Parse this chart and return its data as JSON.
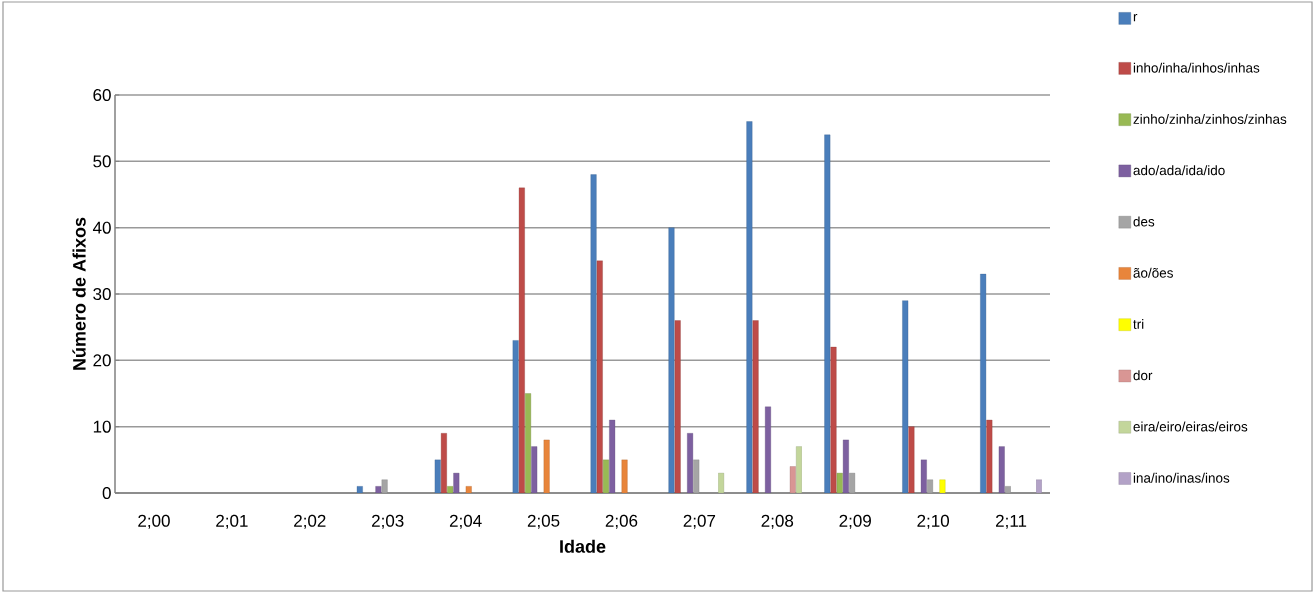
{
  "chart_data": {
    "type": "bar",
    "xlabel": "Idade",
    "ylabel": "Número de Afixos",
    "categories": [
      "2;00",
      "2;01",
      "2;02",
      "2;03",
      "2;04",
      "2;05",
      "2;06",
      "2;07",
      "2;08",
      "2;09",
      "2;10",
      "2;11"
    ],
    "ylim": [
      0,
      60
    ],
    "yticks": [
      0,
      10,
      20,
      30,
      40,
      50,
      60
    ],
    "grid": "y",
    "legend": "right",
    "series": [
      {
        "name": "r",
        "color": "#4a7ebb",
        "values": [
          null,
          null,
          null,
          1,
          5,
          23,
          48,
          40,
          56,
          54,
          29,
          33
        ]
      },
      {
        "name": "inho/inha/inhos/inhas",
        "color": "#be4b48",
        "values": [
          null,
          null,
          null,
          null,
          9,
          46,
          35,
          26,
          26,
          22,
          10,
          11
        ]
      },
      {
        "name": "zinho/zinha/zinhos/zinhas",
        "color": "#98b954",
        "values": [
          null,
          null,
          null,
          null,
          1,
          15,
          5,
          null,
          null,
          3,
          null,
          null
        ]
      },
      {
        "name": "ado/ada/ida/ido",
        "color": "#7d60a0",
        "values": [
          null,
          null,
          null,
          1,
          3,
          7,
          11,
          9,
          13,
          8,
          5,
          7
        ]
      },
      {
        "name": "des",
        "color": "#a5a5a5",
        "values": [
          null,
          null,
          null,
          2,
          null,
          null,
          null,
          5,
          null,
          3,
          2,
          1
        ]
      },
      {
        "name": "ão/ões",
        "color": "#e8853b",
        "values": [
          null,
          null,
          null,
          null,
          1,
          8,
          5,
          null,
          null,
          null,
          null,
          null
        ]
      },
      {
        "name": "tri",
        "color": "#ffff00",
        "values": [
          null,
          null,
          null,
          null,
          null,
          null,
          null,
          null,
          null,
          null,
          2,
          null
        ]
      },
      {
        "name": "dor",
        "color": "#d99694",
        "values": [
          null,
          null,
          null,
          null,
          null,
          null,
          null,
          null,
          4,
          null,
          null,
          null
        ]
      },
      {
        "name": "eira/eiro/eiras/eiros",
        "color": "#c3d69b",
        "values": [
          null,
          null,
          null,
          null,
          null,
          null,
          null,
          3,
          7,
          null,
          null,
          null
        ]
      },
      {
        "name": "ina/ino/inas/inos",
        "color": "#b3a2c7",
        "values": [
          null,
          null,
          null,
          null,
          null,
          null,
          null,
          null,
          null,
          null,
          null,
          2
        ]
      }
    ]
  }
}
